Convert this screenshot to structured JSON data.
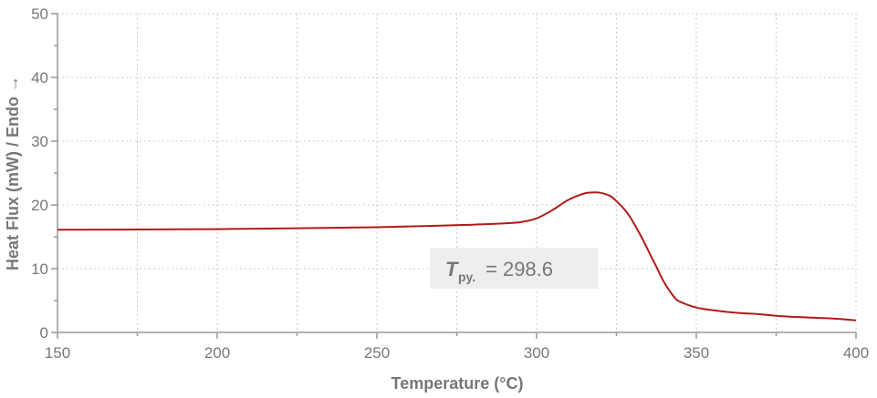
{
  "chart_data": {
    "type": "line",
    "xlabel": "Temperature (°C)",
    "ylabel": "Heat Flux (mW) / Endo →",
    "xlim": [
      150,
      400
    ],
    "ylim": [
      0,
      50
    ],
    "x_ticks": [
      "150",
      "200",
      "250",
      "300",
      "350",
      "400"
    ],
    "y_ticks": [
      "0",
      "10",
      "20",
      "30",
      "40",
      "50"
    ],
    "grid": true,
    "colors": {
      "line": "#b01a1a",
      "axis": "#999999",
      "grid": "#cccccc",
      "label": "#777777",
      "annotation_bg": "#eeeeee"
    },
    "series": [
      {
        "x": [
          150,
          175,
          200,
          225,
          250,
          270,
          280,
          290,
          295,
          300,
          305,
          310,
          315,
          318,
          320,
          323,
          325,
          328,
          330,
          333,
          335,
          338,
          340,
          343,
          345,
          350,
          355,
          360,
          365,
          370,
          375,
          380,
          385,
          390,
          395,
          400
        ],
        "y": [
          16.1,
          16.15,
          16.2,
          16.35,
          16.5,
          16.75,
          16.9,
          17.1,
          17.3,
          17.9,
          19.2,
          20.8,
          21.8,
          21.95,
          21.9,
          21.4,
          20.6,
          19.0,
          17.5,
          14.8,
          12.8,
          9.8,
          7.8,
          5.6,
          4.8,
          3.9,
          3.5,
          3.2,
          3.0,
          2.85,
          2.6,
          2.45,
          2.35,
          2.25,
          2.1,
          1.9
        ]
      }
    ],
    "annotation": {
      "symbol": "T",
      "subscript": "py.",
      "text": "= 298.6"
    }
  }
}
